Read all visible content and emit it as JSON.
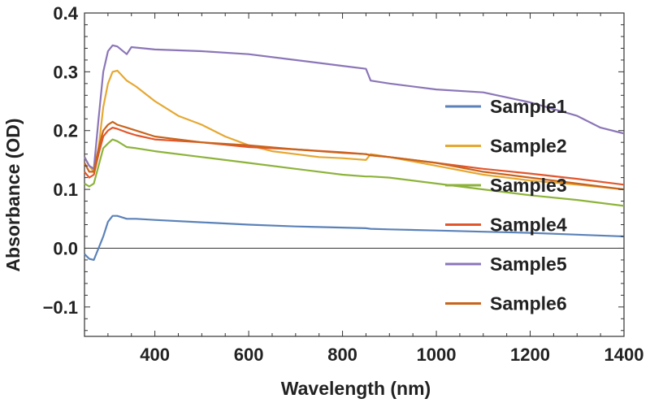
{
  "chart_data": {
    "type": "line",
    "title": "",
    "xlabel": "Wavelength (nm)",
    "ylabel": "Absorbance (OD)",
    "xlim": [
      250,
      1400
    ],
    "ylim": [
      -0.15,
      0.4
    ],
    "xticks": [
      400,
      600,
      800,
      1000,
      1200,
      1400
    ],
    "yticks": [
      -0.1,
      0.0,
      0.1,
      0.2,
      0.3,
      0.4
    ],
    "ytick_labels": [
      "−0.1",
      "0.0",
      "0.1",
      "0.2",
      "0.3",
      "0.4"
    ],
    "grid": false,
    "zero_line": true,
    "legend_position": "right",
    "series": [
      {
        "name": "Sample1",
        "color": "#5b82b8",
        "points": [
          [
            250,
            -0.01
          ],
          [
            260,
            -0.018
          ],
          [
            270,
            -0.02
          ],
          [
            280,
            0.0
          ],
          [
            290,
            0.02
          ],
          [
            300,
            0.045
          ],
          [
            310,
            0.055
          ],
          [
            320,
            0.055
          ],
          [
            340,
            0.05
          ],
          [
            360,
            0.05
          ],
          [
            400,
            0.048
          ],
          [
            500,
            0.044
          ],
          [
            600,
            0.04
          ],
          [
            700,
            0.037
          ],
          [
            800,
            0.035
          ],
          [
            850,
            0.034
          ],
          [
            860,
            0.033
          ],
          [
            900,
            0.032
          ],
          [
            1000,
            0.03
          ],
          [
            1100,
            0.028
          ],
          [
            1200,
            0.026
          ],
          [
            1300,
            0.023
          ],
          [
            1400,
            0.02
          ]
        ]
      },
      {
        "name": "Sample2",
        "color": "#e5a832",
        "points": [
          [
            250,
            0.155
          ],
          [
            260,
            0.14
          ],
          [
            270,
            0.13
          ],
          [
            280,
            0.17
          ],
          [
            290,
            0.24
          ],
          [
            300,
            0.28
          ],
          [
            310,
            0.3
          ],
          [
            320,
            0.302
          ],
          [
            340,
            0.285
          ],
          [
            360,
            0.275
          ],
          [
            400,
            0.25
          ],
          [
            450,
            0.225
          ],
          [
            500,
            0.21
          ],
          [
            550,
            0.19
          ],
          [
            600,
            0.175
          ],
          [
            650,
            0.165
          ],
          [
            700,
            0.16
          ],
          [
            750,
            0.155
          ],
          [
            800,
            0.153
          ],
          [
            850,
            0.15
          ],
          [
            860,
            0.16
          ],
          [
            900,
            0.155
          ],
          [
            1000,
            0.14
          ],
          [
            1100,
            0.125
          ],
          [
            1200,
            0.115
          ],
          [
            1300,
            0.108
          ],
          [
            1400,
            0.1
          ]
        ]
      },
      {
        "name": "Sample3",
        "color": "#8db33a",
        "points": [
          [
            250,
            0.11
          ],
          [
            260,
            0.105
          ],
          [
            270,
            0.11
          ],
          [
            280,
            0.14
          ],
          [
            290,
            0.17
          ],
          [
            300,
            0.178
          ],
          [
            310,
            0.185
          ],
          [
            320,
            0.182
          ],
          [
            340,
            0.172
          ],
          [
            360,
            0.17
          ],
          [
            400,
            0.165
          ],
          [
            500,
            0.155
          ],
          [
            600,
            0.145
          ],
          [
            700,
            0.135
          ],
          [
            800,
            0.125
          ],
          [
            850,
            0.122
          ],
          [
            860,
            0.122
          ],
          [
            900,
            0.12
          ],
          [
            1000,
            0.11
          ],
          [
            1100,
            0.1
          ],
          [
            1200,
            0.09
          ],
          [
            1300,
            0.082
          ],
          [
            1400,
            0.072
          ]
        ]
      },
      {
        "name": "Sample4",
        "color": "#e2562c",
        "points": [
          [
            250,
            0.13
          ],
          [
            260,
            0.12
          ],
          [
            270,
            0.125
          ],
          [
            280,
            0.16
          ],
          [
            290,
            0.19
          ],
          [
            300,
            0.2
          ],
          [
            310,
            0.205
          ],
          [
            320,
            0.203
          ],
          [
            340,
            0.197
          ],
          [
            360,
            0.192
          ],
          [
            400,
            0.185
          ],
          [
            500,
            0.18
          ],
          [
            600,
            0.172
          ],
          [
            700,
            0.168
          ],
          [
            800,
            0.163
          ],
          [
            850,
            0.16
          ],
          [
            860,
            0.158
          ],
          [
            900,
            0.155
          ],
          [
            1000,
            0.145
          ],
          [
            1100,
            0.135
          ],
          [
            1200,
            0.127
          ],
          [
            1300,
            0.118
          ],
          [
            1400,
            0.108
          ]
        ]
      },
      {
        "name": "Sample5",
        "color": "#8b76b8",
        "points": [
          [
            250,
            0.155
          ],
          [
            260,
            0.14
          ],
          [
            270,
            0.135
          ],
          [
            280,
            0.22
          ],
          [
            290,
            0.3
          ],
          [
            300,
            0.335
          ],
          [
            310,
            0.345
          ],
          [
            320,
            0.343
          ],
          [
            340,
            0.33
          ],
          [
            350,
            0.342
          ],
          [
            400,
            0.338
          ],
          [
            500,
            0.335
          ],
          [
            600,
            0.33
          ],
          [
            700,
            0.32
          ],
          [
            800,
            0.31
          ],
          [
            850,
            0.305
          ],
          [
            860,
            0.285
          ],
          [
            900,
            0.28
          ],
          [
            1000,
            0.27
          ],
          [
            1100,
            0.265
          ],
          [
            1200,
            0.248
          ],
          [
            1300,
            0.225
          ],
          [
            1350,
            0.205
          ],
          [
            1400,
            0.195
          ]
        ]
      },
      {
        "name": "Sample6",
        "color": "#c8641c",
        "points": [
          [
            250,
            0.145
          ],
          [
            260,
            0.13
          ],
          [
            270,
            0.13
          ],
          [
            280,
            0.17
          ],
          [
            290,
            0.2
          ],
          [
            300,
            0.21
          ],
          [
            310,
            0.215
          ],
          [
            320,
            0.21
          ],
          [
            340,
            0.205
          ],
          [
            360,
            0.2
          ],
          [
            400,
            0.19
          ],
          [
            500,
            0.18
          ],
          [
            600,
            0.175
          ],
          [
            700,
            0.168
          ],
          [
            800,
            0.162
          ],
          [
            850,
            0.16
          ],
          [
            860,
            0.158
          ],
          [
            900,
            0.155
          ],
          [
            1000,
            0.145
          ],
          [
            1100,
            0.13
          ],
          [
            1200,
            0.12
          ],
          [
            1300,
            0.11
          ],
          [
            1400,
            0.1
          ]
        ]
      }
    ]
  }
}
